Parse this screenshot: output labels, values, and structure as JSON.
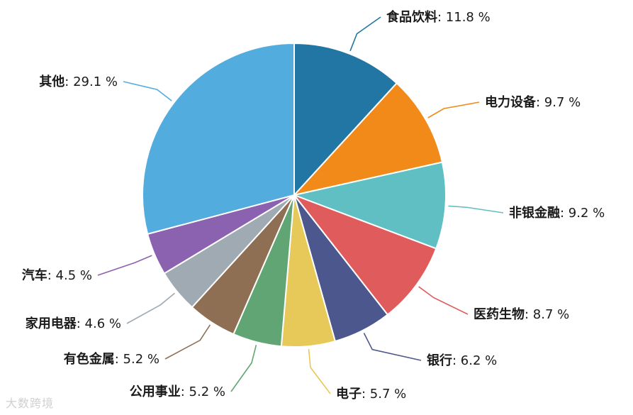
{
  "chart_data": {
    "type": "pie",
    "start": "12 o'clock",
    "direction": "clockwise",
    "slices": [
      {
        "label": "食品饮料",
        "value": 11.8,
        "text": "11.8 %",
        "color": "#2276A3"
      },
      {
        "label": "电力设备",
        "value": 9.7,
        "text": "9.7 %",
        "color": "#F28A1A"
      },
      {
        "label": "非银金融",
        "value": 9.2,
        "text": "9.2 %",
        "color": "#5FBFC3"
      },
      {
        "label": "医药生物",
        "value": 8.7,
        "text": "8.7 %",
        "color": "#E05C5C"
      },
      {
        "label": "银行",
        "value": 6.2,
        "text": "6.2 %",
        "color": "#4C578D"
      },
      {
        "label": "电子",
        "value": 5.7,
        "text": "5.7 %",
        "color": "#E7C95A"
      },
      {
        "label": "公用事业",
        "value": 5.2,
        "text": "5.2 %",
        "color": "#62A575"
      },
      {
        "label": "有色金属",
        "value": 5.2,
        "text": "5.2 %",
        "color": "#8E6F53"
      },
      {
        "label": "家用电器",
        "value": 4.6,
        "text": "4.6 %",
        "color": "#9FAAB3"
      },
      {
        "label": "汽车",
        "value": 4.5,
        "text": "4.5 %",
        "color": "#8B62B0"
      },
      {
        "label": "其他",
        "value": 29.1,
        "text": "29.1 %",
        "color": "#52ACDD"
      }
    ]
  },
  "watermark": "大数跨境"
}
